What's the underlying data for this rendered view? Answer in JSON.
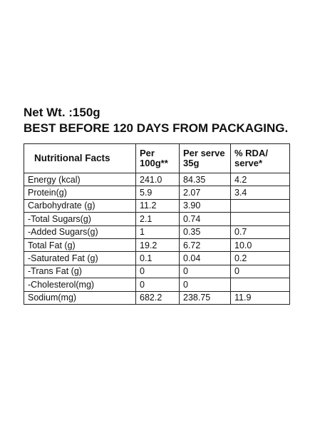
{
  "net_weight": "Net Wt. :150g",
  "best_before": "BEST BEFORE 120 DAYS FROM PACKAGING.",
  "table": {
    "headers": [
      "Nutritional Facts",
      "Per 100g**",
      "Per serve 35g",
      "% RDA/ serve*"
    ],
    "rows": [
      [
        "Energy (kcal)",
        "241.0",
        "84.35",
        "4.2"
      ],
      [
        "Protein(g)",
        "5.9",
        "2.07",
        "3.4"
      ],
      [
        "Carbohydrate (g)",
        "11.2",
        "3.90",
        ""
      ],
      [
        "-Total Sugars(g)",
        "2.1",
        "0.74",
        ""
      ],
      [
        "-Added Sugars(g)",
        "1",
        "0.35",
        "0.7"
      ],
      [
        "Total  Fat (g)",
        "19.2",
        "6.72",
        "10.0"
      ],
      [
        "-Saturated  Fat (g)",
        "0.1",
        "0.04",
        "0.2"
      ],
      [
        "-Trans  Fat (g)",
        "0",
        "0",
        "0"
      ],
      [
        "-Cholesterol(mg)",
        "0",
        "0",
        ""
      ],
      [
        "Sodium(mg)",
        "682.2",
        "238.75",
        "11.9"
      ]
    ]
  }
}
